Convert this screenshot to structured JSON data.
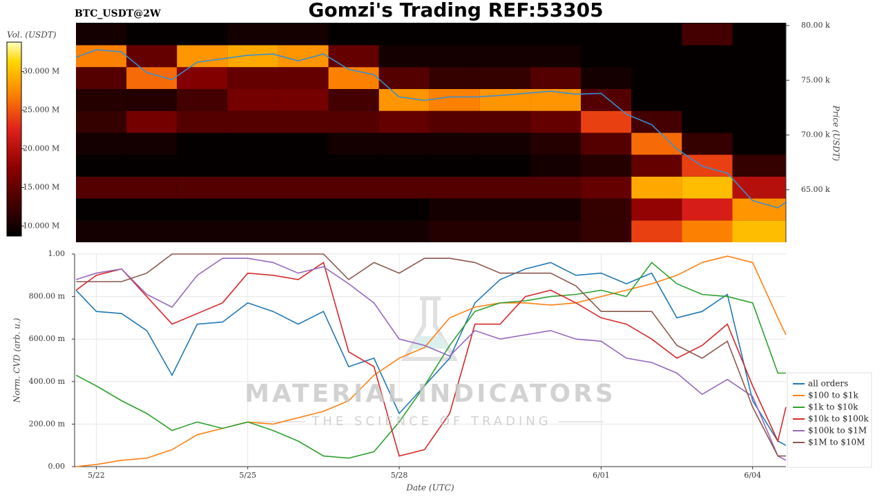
{
  "watermark": {
    "title": "MATERIAL INDICATORS",
    "subtitle": "THE SCIENCE OF TRADING"
  },
  "chart_data": [
    {
      "type": "heatmap",
      "title": "Gomzi's Trading REF:53305",
      "subtitle": "BTC_USDT@2W",
      "ylabel": "Price (USDT)",
      "xlim": [
        -0.4,
        13.66
      ],
      "ylim": [
        60200,
        80250
      ],
      "yticks": [
        {
          "value": 65000,
          "label": "65.00 k"
        },
        {
          "value": 70000,
          "label": "70.00 k"
        },
        {
          "value": 75000,
          "label": "75.00 k"
        },
        {
          "value": 80000,
          "label": "80.00 k"
        }
      ],
      "x_edges": [
        -0.4,
        0.6,
        1.6,
        2.6,
        3.6,
        4.6,
        5.6,
        6.6,
        7.6,
        8.6,
        9.6,
        10.6,
        11.6,
        12.6,
        13.66
      ],
      "y_edges": [
        60200,
        62200,
        64200,
        66200,
        68200,
        70200,
        72200,
        74200,
        76200,
        78200,
        80200
      ],
      "z": [
        [
          10,
          10,
          10,
          10,
          10,
          10,
          10,
          11,
          11,
          11,
          12,
          24,
          27,
          30
        ],
        [
          9,
          9,
          9,
          9,
          9,
          9,
          9,
          10,
          10,
          10,
          12,
          18,
          22,
          28
        ],
        [
          14,
          14,
          14,
          14,
          14,
          14,
          14,
          14,
          14,
          14,
          15,
          29,
          30,
          20
        ],
        [
          9,
          9,
          9,
          9,
          9,
          9,
          9,
          9,
          9,
          10,
          11,
          15,
          24,
          12
        ],
        [
          10,
          10,
          9,
          9,
          9,
          10,
          10,
          10,
          10,
          11,
          14,
          26,
          12,
          9
        ],
        [
          12,
          16,
          14,
          14,
          14,
          14,
          15,
          14,
          14,
          15,
          24,
          13,
          9,
          9
        ],
        [
          11,
          11,
          13,
          16,
          16,
          13,
          28,
          27,
          28,
          28,
          14,
          9,
          9,
          9
        ],
        [
          14,
          26,
          17,
          15,
          15,
          27,
          14,
          12,
          12,
          14,
          10,
          9,
          9,
          9
        ],
        [
          27,
          15,
          28,
          29,
          28,
          15,
          10,
          10,
          10,
          10,
          9,
          9,
          9,
          9
        ],
        [
          10,
          9,
          9,
          10,
          10,
          9,
          9,
          9,
          9,
          9,
          9,
          9,
          13,
          9
        ]
      ],
      "colorbar": {
        "label": "Vol. (USDT)",
        "lim": [
          8.7,
          33.8
        ],
        "ticks": [
          {
            "value": 10,
            "label": "10.000 M"
          },
          {
            "value": 15,
            "label": "15.000 M"
          },
          {
            "value": 20,
            "label": "20.000 M"
          },
          {
            "value": 25,
            "label": "25.000 M"
          },
          {
            "value": 30,
            "label": "30.000 M"
          }
        ]
      },
      "x": [
        -0.4,
        0,
        0.5,
        1,
        1.5,
        2,
        2.5,
        3,
        3.5,
        4,
        4.5,
        5,
        5.5,
        6,
        6.5,
        7,
        7.5,
        8,
        8.5,
        9,
        9.5,
        10,
        10.5,
        11,
        11.5,
        12,
        12.5,
        13,
        13.5,
        13.66
      ],
      "series": [
        {
          "color": "#3a8fd0",
          "values": [
            77090,
            77780,
            77600,
            75700,
            75060,
            76650,
            76960,
            77280,
            77400,
            76770,
            77400,
            76000,
            75500,
            73480,
            73160,
            73480,
            73480,
            73610,
            73800,
            74000,
            73730,
            73800,
            71900,
            70950,
            68730,
            67150,
            66520,
            64000,
            63350,
            63860
          ]
        }
      ]
    },
    {
      "type": "line",
      "xlabel": "Date (UTC)",
      "ylabel": "Norm. CVD (arb. u.)",
      "grid": true,
      "legend": "right",
      "xlim": [
        -0.43,
        13.66
      ],
      "ylim": [
        0,
        1
      ],
      "xticks": [
        {
          "value": 0,
          "label": "5/22"
        },
        {
          "value": 3,
          "label": "5/25"
        },
        {
          "value": 6,
          "label": "5/28"
        },
        {
          "value": 10,
          "label": "6/01"
        },
        {
          "value": 13,
          "label": "6/04"
        }
      ],
      "yticks": [
        {
          "value": 0,
          "label": "0.00"
        },
        {
          "value": 0.2,
          "label": "200.00 m"
        },
        {
          "value": 0.4,
          "label": "400.00 m"
        },
        {
          "value": 0.6,
          "label": "600.00 m"
        },
        {
          "value": 0.8,
          "label": "800.00 m"
        },
        {
          "value": 1,
          "label": "1.00"
        }
      ],
      "x": [
        -0.4,
        0,
        0.5,
        1,
        1.5,
        2,
        2.5,
        3,
        3.5,
        4,
        4.5,
        5,
        5.5,
        6,
        6.5,
        7,
        7.5,
        8,
        8.5,
        9,
        9.5,
        10,
        10.5,
        11,
        11.5,
        12,
        12.5,
        13,
        13.5,
        13.66
      ],
      "series": [
        {
          "name": "all orders",
          "color": "#1f77b4",
          "values": [
            0.83,
            0.73,
            0.72,
            0.64,
            0.43,
            0.67,
            0.68,
            0.77,
            0.73,
            0.67,
            0.73,
            0.47,
            0.51,
            0.25,
            0.38,
            0.51,
            0.77,
            0.88,
            0.93,
            0.96,
            0.9,
            0.91,
            0.86,
            0.91,
            0.7,
            0.73,
            0.81,
            0.31,
            0.12,
            0.1
          ]
        },
        {
          "name": "$100 to $1k",
          "color": "#ff7f0e",
          "values": [
            0.0,
            0.01,
            0.03,
            0.04,
            0.08,
            0.15,
            0.18,
            0.21,
            0.2,
            0.23,
            0.26,
            0.31,
            0.43,
            0.51,
            0.56,
            0.7,
            0.75,
            0.77,
            0.77,
            0.76,
            0.77,
            0.8,
            0.83,
            0.86,
            0.9,
            0.96,
            0.99,
            0.96,
            0.7,
            0.62
          ]
        },
        {
          "name": "$1k to $10k",
          "color": "#2ca02c",
          "values": [
            0.43,
            0.38,
            0.31,
            0.25,
            0.17,
            0.21,
            0.18,
            0.21,
            0.17,
            0.12,
            0.05,
            0.04,
            0.07,
            0.21,
            0.38,
            0.57,
            0.73,
            0.77,
            0.78,
            0.8,
            0.81,
            0.83,
            0.8,
            0.96,
            0.86,
            0.81,
            0.8,
            0.77,
            0.44,
            0.44
          ]
        },
        {
          "name": "$10k to $100k",
          "color": "#d62728",
          "values": [
            0.83,
            0.9,
            0.93,
            0.8,
            0.67,
            0.72,
            0.77,
            0.91,
            0.9,
            0.88,
            0.96,
            0.54,
            0.47,
            0.05,
            0.08,
            0.25,
            0.67,
            0.67,
            0.8,
            0.83,
            0.77,
            0.7,
            0.67,
            0.6,
            0.51,
            0.57,
            0.67,
            0.38,
            0.12,
            0.28
          ]
        },
        {
          "name": "$100k to $1M",
          "color": "#9467bd",
          "values": [
            0.88,
            0.91,
            0.93,
            0.81,
            0.75,
            0.9,
            0.98,
            0.98,
            0.96,
            0.91,
            0.94,
            0.86,
            0.77,
            0.6,
            0.57,
            0.52,
            0.64,
            0.6,
            0.62,
            0.64,
            0.6,
            0.59,
            0.51,
            0.49,
            0.44,
            0.34,
            0.41,
            0.33,
            0.05,
            0.03
          ]
        },
        {
          "name": "$1M to $10M",
          "color": "#8c564b",
          "values": [
            0.87,
            0.87,
            0.87,
            0.91,
            1.0,
            1.0,
            1.0,
            1.0,
            1.0,
            1.0,
            1.0,
            0.88,
            0.96,
            0.91,
            0.98,
            0.98,
            0.96,
            0.91,
            0.91,
            0.91,
            0.85,
            0.73,
            0.73,
            0.73,
            0.57,
            0.51,
            0.59,
            0.28,
            0.05,
            0.05
          ]
        }
      ]
    }
  ]
}
